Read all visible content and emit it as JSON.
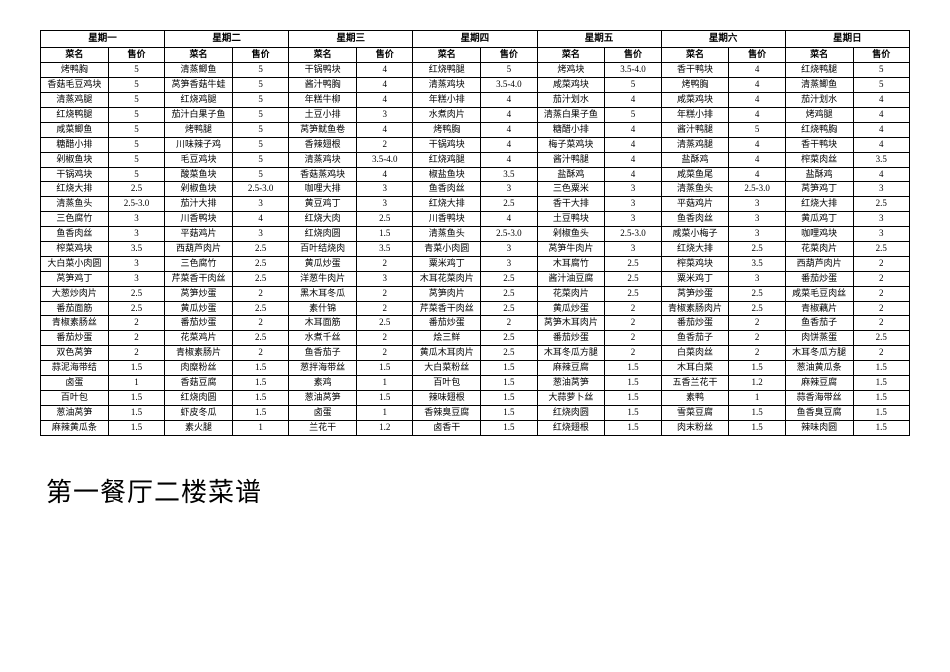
{
  "days": [
    "星期一",
    "星期二",
    "星期三",
    "星期四",
    "星期五",
    "星期六",
    "星期日"
  ],
  "sub_headers": [
    "菜名",
    "售价"
  ],
  "rows": [
    [
      "烤鸭胸",
      "5",
      "清蒸鲫鱼",
      "5",
      "干锅鸭块",
      "4",
      "红烧鸭腿",
      "5",
      "烤鸡块",
      "3.5-4.0",
      "香干鸭块",
      "4",
      "红烧鸭腿",
      "5"
    ],
    [
      "香菇毛豆鸡块",
      "5",
      "莴笋香菇牛蛙",
      "5",
      "酱汁鸭胸",
      "4",
      "清蒸鸡块",
      "3.5-4.0",
      "咸菜鸡块",
      "5",
      "烤鸭胸",
      "4",
      "清蒸鲫鱼",
      "5"
    ],
    [
      "清蒸鸡腿",
      "5",
      "红烧鸡腿",
      "5",
      "年糕牛柳",
      "4",
      "年糕小排",
      "4",
      "茄汁划水",
      "4",
      "咸菜鸡块",
      "4",
      "茄汁划水",
      "4"
    ],
    [
      "红烧鸭腿",
      "5",
      "茄汁白果子鱼",
      "5",
      "土豆小排",
      "3",
      "水煮肉片",
      "4",
      "清蒸白果子鱼",
      "5",
      "年糕小排",
      "4",
      "烤鸡腿",
      "4"
    ],
    [
      "咸菜鲫鱼",
      "5",
      "烤鸭腿",
      "5",
      "莴笋鱿鱼卷",
      "4",
      "烤鸭胸",
      "4",
      "糖醋小排",
      "4",
      "酱汁鸭腿",
      "5",
      "红烧鸭胸",
      "4"
    ],
    [
      "糖醋小排",
      "5",
      "川味辣子鸡",
      "5",
      "香辣翅根",
      "2",
      "干锅鸡块",
      "4",
      "梅子菜鸡块",
      "4",
      "清蒸鸡腿",
      "4",
      "香干鸭块",
      "4"
    ],
    [
      "剁椒鱼块",
      "5",
      "毛豆鸡块",
      "5",
      "清蒸鸡块",
      "3.5-4.0",
      "红烧鸡腿",
      "4",
      "酱汁鸭腿",
      "4",
      "盐酥鸡",
      "4",
      "榨菜肉丝",
      "3.5"
    ],
    [
      "干锅鸡块",
      "5",
      "酸菜鱼块",
      "5",
      "香菇蒸鸡块",
      "4",
      "椒盐鱼块",
      "3.5",
      "盐酥鸡",
      "4",
      "咸菜鱼尾",
      "4",
      "盐酥鸡",
      "4"
    ],
    [
      "红烧大排",
      "2.5",
      "剁椒鱼块",
      "2.5-3.0",
      "咖哩大排",
      "3",
      "鱼香肉丝",
      "3",
      "三色粟米",
      "3",
      "清蒸鱼头",
      "2.5-3.0",
      "莴笋鸡丁",
      "3"
    ],
    [
      "清蒸鱼头",
      "2.5-3.0",
      "茄汁大排",
      "3",
      "黄豆鸡丁",
      "3",
      "红烧大排",
      "2.5",
      "香干大排",
      "3",
      "平菇鸡片",
      "3",
      "红烧大排",
      "2.5"
    ],
    [
      "三色腐竹",
      "3",
      "川香鸭块",
      "4",
      "红烧大肉",
      "2.5",
      "川香鸭块",
      "4",
      "土豆鸭块",
      "3",
      "鱼香肉丝",
      "3",
      "黄瓜鸡丁",
      "3"
    ],
    [
      "鱼香肉丝",
      "3",
      "平菇鸡片",
      "3",
      "红烧肉圆",
      "1.5",
      "清蒸鱼头",
      "2.5-3.0",
      "剁椒鱼头",
      "2.5-3.0",
      "咸菜小梅子",
      "3",
      "咖哩鸡块",
      "3"
    ],
    [
      "榨菜鸡块",
      "3.5",
      "西葫芦肉片",
      "2.5",
      "百叶结烧肉",
      "3.5",
      "青菜小肉圆",
      "3",
      "莴笋牛肉片",
      "3",
      "红烧大排",
      "2.5",
      "花菜肉片",
      "2.5"
    ],
    [
      "大白菜小肉圆",
      "3",
      "三色腐竹",
      "2.5",
      "黄瓜炒蛋",
      "2",
      "粟米鸡丁",
      "3",
      "木耳腐竹",
      "2.5",
      "榨菜鸡块",
      "3.5",
      "西葫芦肉片",
      "2"
    ],
    [
      "莴笋鸡丁",
      "3",
      "芹菜香干肉丝",
      "2.5",
      "洋葱牛肉片",
      "3",
      "木耳花菜肉片",
      "2.5",
      "酱汁油豆腐",
      "2.5",
      "粟米鸡丁",
      "3",
      "番茄炒蛋",
      "2"
    ],
    [
      "大葱炒肉片",
      "2.5",
      "莴笋炒蛋",
      "2",
      "黑木耳冬瓜",
      "2",
      "莴笋肉片",
      "2.5",
      "花菜肉片",
      "2.5",
      "莴笋炒蛋",
      "2.5",
      "咸菜毛豆肉丝",
      "2"
    ],
    [
      "番茄面筋",
      "2.5",
      "黄瓜炒蛋",
      "2.5",
      "素什锦",
      "2",
      "芹菜香干肉丝",
      "2.5",
      "黄瓜炒蛋",
      "2",
      "青椒素肠肉片",
      "2.5",
      "青椒藕片",
      "2"
    ],
    [
      "青椒素肠丝",
      "2",
      "番茄炒蛋",
      "2",
      "木耳面筋",
      "2.5",
      "番茄炒蛋",
      "2",
      "莴笋木耳肉片",
      "2",
      "番茄炒蛋",
      "2",
      "鱼香茄子",
      "2"
    ],
    [
      "番茄炒蛋",
      "2",
      "花菜鸡片",
      "2.5",
      "水煮千丝",
      "2",
      "烩三鲜",
      "2.5",
      "番茄炒蛋",
      "2",
      "鱼香茄子",
      "2",
      "肉饼蒸蛋",
      "2.5"
    ],
    [
      "双色莴笋",
      "2",
      "青椒素肠片",
      "2",
      "鱼香茄子",
      "2",
      "黄瓜木耳肉片",
      "2.5",
      "木耳冬瓜方腿",
      "2",
      "白菜肉丝",
      "2",
      "木耳冬瓜方腿",
      "2"
    ],
    [
      "蒜泥海带结",
      "1.5",
      "肉糜粉丝",
      "1.5",
      "葱拌海带丝",
      "1.5",
      "大白菜粉丝",
      "1.5",
      "麻辣豆腐",
      "1.5",
      "木耳白菜",
      "1.5",
      "葱油黄瓜条",
      "1.5"
    ],
    [
      "卤蛋",
      "1",
      "香菇豆腐",
      "1.5",
      "素鸡",
      "1",
      "百叶包",
      "1.5",
      "葱油莴笋",
      "1.5",
      "五香兰花干",
      "1.2",
      "麻辣豆腐",
      "1.5"
    ],
    [
      "百叶包",
      "1.5",
      "红烧肉圆",
      "1.5",
      "葱油莴笋",
      "1.5",
      "辣味翅根",
      "1.5",
      "大蒜萝卜丝",
      "1.5",
      "素鸭",
      "1",
      "蒜香海带丝",
      "1.5"
    ],
    [
      "葱油莴笋",
      "1.5",
      "虾皮冬瓜",
      "1.5",
      "卤蛋",
      "1",
      "香辣臭豆腐",
      "1.5",
      "红烧肉圆",
      "1.5",
      "雪菜豆腐",
      "1.5",
      "鱼香臭豆腐",
      "1.5"
    ],
    [
      "麻辣黄瓜条",
      "1.5",
      "素火腿",
      "1",
      "兰花干",
      "1.2",
      "卤香干",
      "1.5",
      "红烧翅根",
      "1.5",
      "肉末粉丝",
      "1.5",
      "辣味肉圆",
      "1.5"
    ]
  ],
  "title": "第一餐厅二楼菜谱",
  "colors": {
    "border": "#000000",
    "background": "#ffffff",
    "text": "#000000"
  },
  "layout": {
    "name_col_width_pct": 7.8,
    "price_col_width_pct": 6.48,
    "header_fontsize": 9.5,
    "cell_fontsize": 9,
    "title_fontsize": 26
  }
}
